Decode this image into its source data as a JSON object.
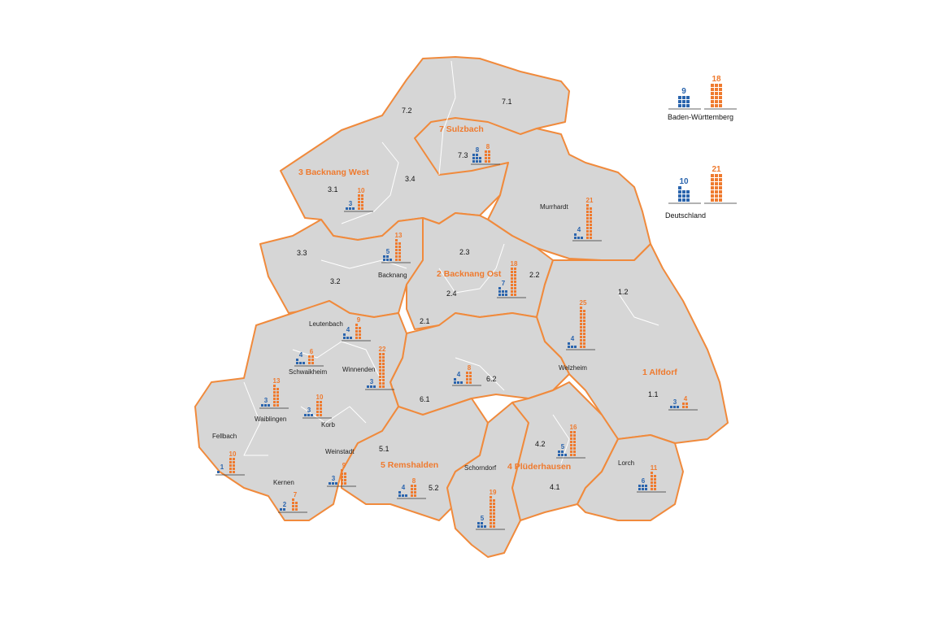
{
  "colors": {
    "blue": "#2a64ad",
    "orange": "#ef7a2e",
    "land": "#d6d6d6",
    "border": "#f08a3c"
  },
  "districts": [
    {
      "id": "d1",
      "label": "1 Alfdorf"
    },
    {
      "id": "d2",
      "label": "2 Backnang Ost"
    },
    {
      "id": "d3",
      "label": "3 Backnang West"
    },
    {
      "id": "d4",
      "label": "4 Plüderhausen"
    },
    {
      "id": "d5",
      "label": "5 Remshalden"
    },
    {
      "id": "d7",
      "label": "7 Sulzbach"
    }
  ],
  "codes": [
    "1.1",
    "1.2",
    "2.1",
    "2.2",
    "2.3",
    "2.4",
    "3.1",
    "3.3",
    "3.2",
    "3.4",
    "4.1",
    "4.2",
    "5.1",
    "5.2",
    "6.1",
    "6.2",
    "7.1",
    "7.2",
    "7.3"
  ],
  "towns": [
    "Murrhardt",
    "Backnang",
    "Leutenbach",
    "Schwaikheim",
    "Winnenden",
    "Waiblingen",
    "Korb",
    "Fellbach",
    "Weinstadt",
    "Kernen",
    "Schorndorf",
    "Welzheim",
    "Lorch"
  ],
  "bar_groups": [
    {
      "id": "sulzbach",
      "blue": 8,
      "orange": 8
    },
    {
      "id": "backnang-west",
      "blue": 3,
      "orange": 10
    },
    {
      "id": "backnang",
      "blue": 5,
      "orange": 13
    },
    {
      "id": "backnang-ost",
      "blue": 7,
      "orange": 18
    },
    {
      "id": "murrhardt",
      "blue": 4,
      "orange": 21
    },
    {
      "id": "leutenbach",
      "blue": 4,
      "orange": 9
    },
    {
      "id": "schwaikheim",
      "blue": 4,
      "orange": 6
    },
    {
      "id": "winnenden",
      "blue": 3,
      "orange": 22
    },
    {
      "id": "waiblingen",
      "blue": 3,
      "orange": 13
    },
    {
      "id": "korb",
      "blue": 3,
      "orange": 10
    },
    {
      "id": "fellbach",
      "blue": 1,
      "orange": 10
    },
    {
      "id": "weinstadt",
      "blue": 3,
      "orange": 9
    },
    {
      "id": "kernen",
      "blue": 2,
      "orange": 7
    },
    {
      "id": "remshalden",
      "blue": 4,
      "orange": 8
    },
    {
      "id": "schorndorf",
      "blue": 5,
      "orange": 19
    },
    {
      "id": "region-6",
      "blue": 4,
      "orange": 8
    },
    {
      "id": "welzheim",
      "blue": 4,
      "orange": 25
    },
    {
      "id": "pluederhausen",
      "blue": 5,
      "orange": 16
    },
    {
      "id": "alfdorf",
      "blue": 3,
      "orange": 4
    },
    {
      "id": "lorch",
      "blue": 6,
      "orange": 11
    }
  ],
  "legend": [
    {
      "label": "Baden-Württemberg",
      "blue": 9,
      "orange": 18
    },
    {
      "label": "Deutschland",
      "blue": 10,
      "orange": 21
    }
  ]
}
